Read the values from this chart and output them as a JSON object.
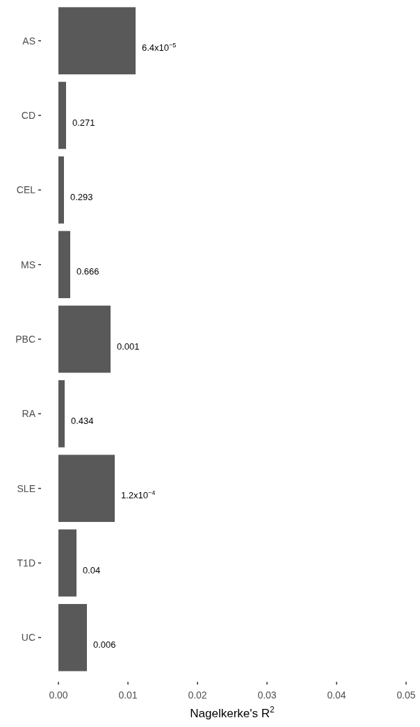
{
  "chart_data": {
    "type": "bar",
    "orientation": "horizontal",
    "xlabel": "Nagelkerke's R$^{2}$",
    "categories": [
      "AS",
      "CD",
      "CEL",
      "MS",
      "PBC",
      "RA",
      "SLE",
      "T1D",
      "UC"
    ],
    "values": [
      0.0111,
      0.0011,
      0.0008,
      0.0017,
      0.0075,
      0.0009,
      0.0081,
      0.0026,
      0.0041
    ],
    "color": "#595959",
    "xlim": [
      0,
      0.05
    ],
    "xticks": [
      {
        "value": 0,
        "label": "0.00"
      },
      0.01,
      0.02,
      0.03,
      0.04,
      0.05
    ],
    "grid": false,
    "annotations": [
      {
        "text": "6.4x10$^{−5}$",
        "x": 0.0111,
        "y": "AS"
      },
      {
        "text": "0.271",
        "x": 0.0011,
        "y": "CD"
      },
      {
        "text": "0.293",
        "x": 0.0008,
        "y": "CEL"
      },
      {
        "text": "0.666",
        "x": 0.0017,
        "y": "MS"
      },
      {
        "text": "0.001",
        "x": 0.0075,
        "y": "PBC"
      },
      {
        "text": "0.434",
        "x": 0.0009,
        "y": "RA"
      },
      {
        "text": "1.2x10$^{−4}$",
        "x": 0.0081,
        "y": "SLE"
      },
      {
        "text": "0.04",
        "x": 0.0026,
        "y": "T1D"
      },
      {
        "text": "0.006",
        "x": 0.0041,
        "y": "UC"
      }
    ]
  }
}
